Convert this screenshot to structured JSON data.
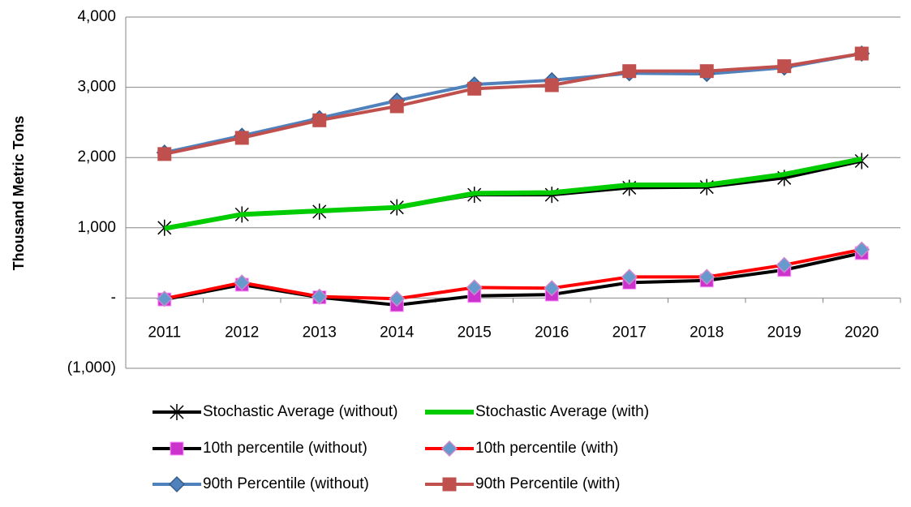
{
  "chart_data": {
    "type": "line",
    "y_label": "Thousand Metric Tons",
    "categories": [
      "2011",
      "2012",
      "2013",
      "2014",
      "2015",
      "2016",
      "2017",
      "2018",
      "2019",
      "2020"
    ],
    "series": [
      {
        "name": "Stochastic Average (without)",
        "color": "#000000",
        "marker": "asterisk",
        "marker_color": "#000000",
        "values": [
          1000,
          1190,
          1230,
          1290,
          1470,
          1470,
          1570,
          1580,
          1710,
          1950
        ]
      },
      {
        "name": "Stochastic Average (with)",
        "color": "#00cc00",
        "marker": "none",
        "marker_color": "#00cc00",
        "values": [
          990,
          1190,
          1240,
          1290,
          1490,
          1500,
          1610,
          1610,
          1760,
          1980
        ]
      },
      {
        "name": "10th percentile (without)",
        "color": "#000000",
        "marker": "square",
        "marker_color": "#cc33cc",
        "values": [
          -20,
          190,
          10,
          -100,
          30,
          50,
          220,
          250,
          400,
          640
        ]
      },
      {
        "name": "10th percentile (with)",
        "color": "#ff0000",
        "marker": "diamond",
        "marker_color": "#6699cc",
        "values": [
          -10,
          220,
          20,
          -10,
          150,
          140,
          300,
          300,
          470,
          690
        ]
      },
      {
        "name": "90th Percentile (without)",
        "color": "#4f81bd",
        "marker": "diamond",
        "marker_color": "#4f81bd",
        "values": [
          2070,
          2310,
          2560,
          2810,
          3040,
          3100,
          3200,
          3190,
          3280,
          3480
        ]
      },
      {
        "name": "90th Percentile (with)",
        "color": "#c0504d",
        "marker": "square",
        "marker_color": "#c0504d",
        "values": [
          2050,
          2280,
          2530,
          2730,
          2980,
          3030,
          3230,
          3230,
          3300,
          3480
        ]
      }
    ],
    "ylim": [
      -1000,
      4000
    ],
    "yticks": [
      {
        "value": -1000,
        "label": "(1,000)"
      },
      {
        "value": 0,
        "label": "-"
      },
      {
        "value": 1000,
        "label": "1,000"
      },
      {
        "value": 2000,
        "label": "2,000"
      },
      {
        "value": 3000,
        "label": "3,000"
      },
      {
        "value": 4000,
        "label": "4,000"
      }
    ],
    "grid": true,
    "legend": "bottom"
  }
}
